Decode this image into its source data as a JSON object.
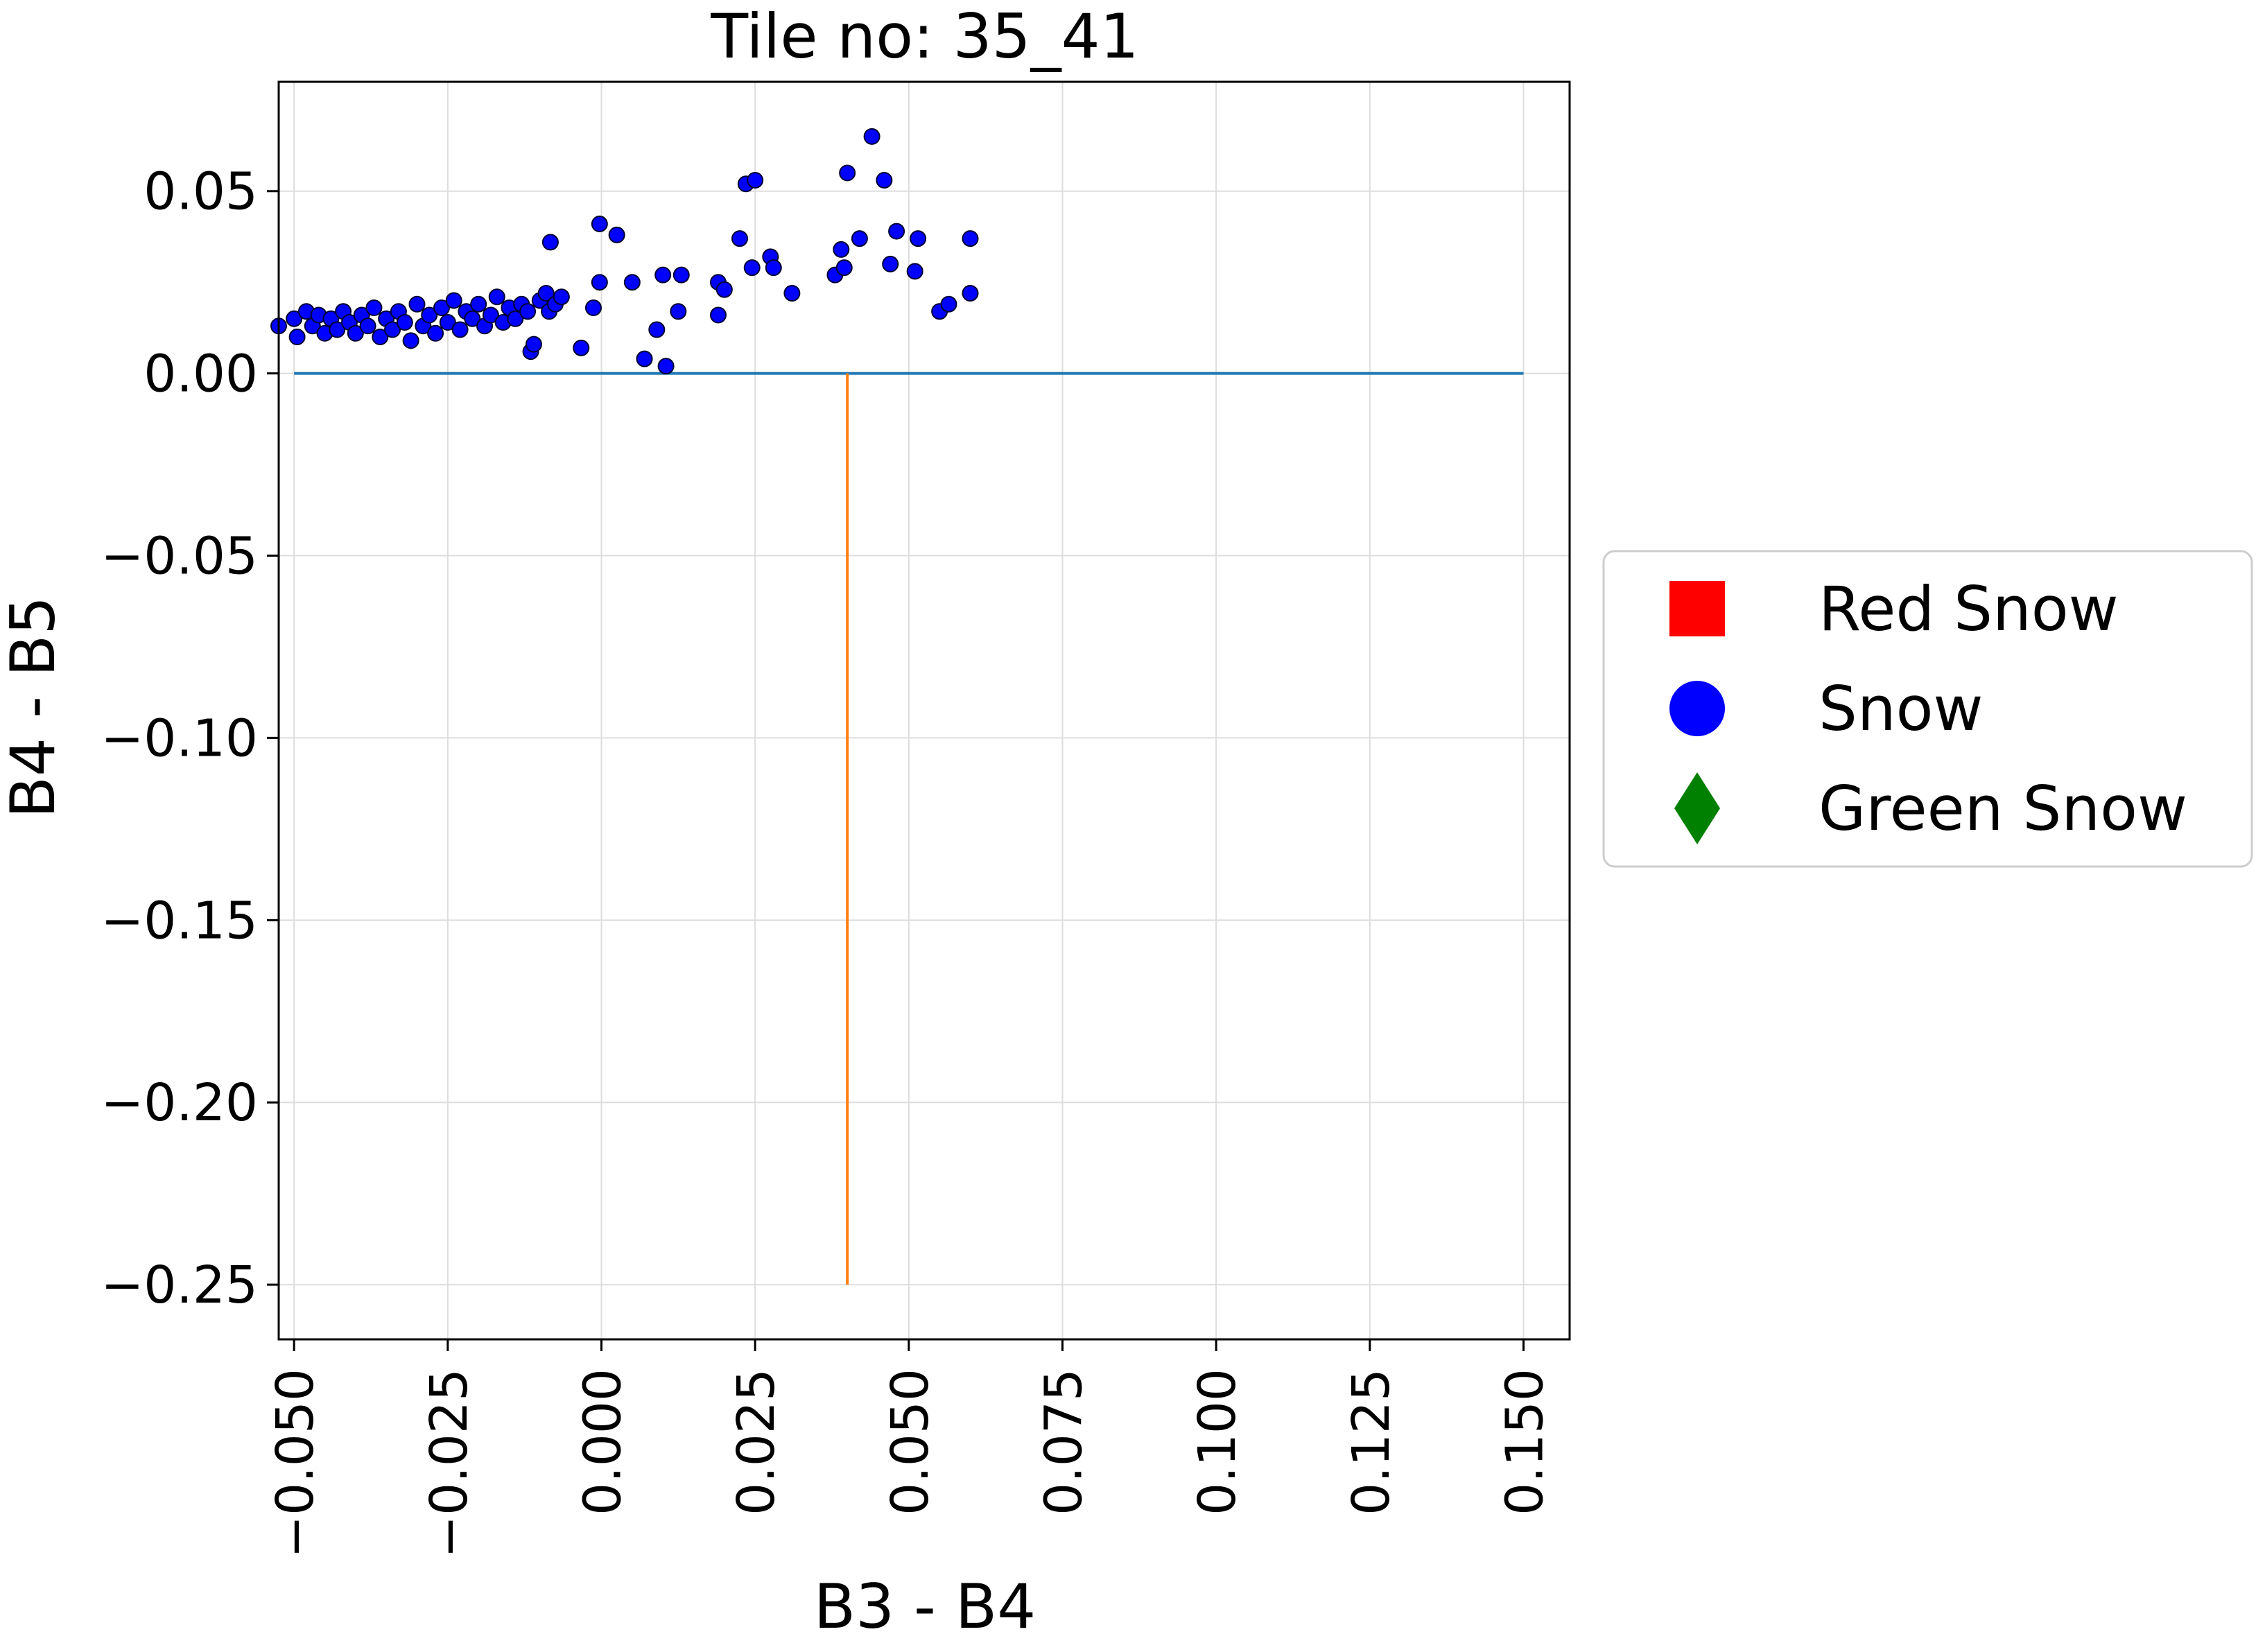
{
  "chart_data": {
    "type": "scatter",
    "title": "Tile no: 35_41",
    "xlabel": "B3 - B4",
    "ylabel": "B4 - B5",
    "xlim": [
      -0.0525,
      0.1575
    ],
    "ylim": [
      -0.265,
      0.08
    ],
    "grid": true,
    "legend_position": "outside-right",
    "x_tick_labels": [
      "−0.050",
      "−0.025",
      "0.000",
      "0.025",
      "0.050",
      "0.075",
      "0.100",
      "0.125",
      "0.150"
    ],
    "x_tick_values": [
      -0.05,
      -0.025,
      0.0,
      0.025,
      0.05,
      0.075,
      0.1,
      0.125,
      0.15
    ],
    "y_tick_labels": [
      "0.05",
      "0.00",
      "−0.05",
      "−0.10",
      "−0.15",
      "−0.20",
      "−0.25"
    ],
    "y_tick_values": [
      0.05,
      0.0,
      -0.05,
      -0.1,
      -0.15,
      -0.2,
      -0.25
    ],
    "legend": [
      {
        "label": "Red Snow",
        "marker": "square",
        "color": "#ff0000"
      },
      {
        "label": "Snow",
        "marker": "circle",
        "color": "#0000ff"
      },
      {
        "label": "Green Snow",
        "marker": "diamond",
        "color": "#008000"
      }
    ],
    "reference_lines": [
      {
        "orientation": "horizontal",
        "y": 0.0,
        "x_from": -0.05,
        "x_to": 0.15,
        "color": "#1f77b4"
      },
      {
        "orientation": "vertical",
        "x": 0.04,
        "y_from": -0.25,
        "y_to": 0.0,
        "color": "#ff7f0e"
      }
    ],
    "series": [
      {
        "name": "Snow",
        "marker": "circle",
        "color": "#0000ff",
        "points": [
          [
            -0.0525,
            0.013
          ],
          [
            -0.05,
            0.015
          ],
          [
            -0.0495,
            0.01
          ],
          [
            -0.048,
            0.017
          ],
          [
            -0.047,
            0.013
          ],
          [
            -0.046,
            0.016
          ],
          [
            -0.045,
            0.011
          ],
          [
            -0.044,
            0.015
          ],
          [
            -0.043,
            0.012
          ],
          [
            -0.042,
            0.017
          ],
          [
            -0.041,
            0.014
          ],
          [
            -0.04,
            0.011
          ],
          [
            -0.039,
            0.016
          ],
          [
            -0.038,
            0.013
          ],
          [
            -0.037,
            0.018
          ],
          [
            -0.036,
            0.01
          ],
          [
            -0.035,
            0.015
          ],
          [
            -0.034,
            0.012
          ],
          [
            -0.033,
            0.017
          ],
          [
            -0.032,
            0.014
          ],
          [
            -0.031,
            0.009
          ],
          [
            -0.03,
            0.019
          ],
          [
            -0.029,
            0.013
          ],
          [
            -0.028,
            0.016
          ],
          [
            -0.027,
            0.011
          ],
          [
            -0.026,
            0.018
          ],
          [
            -0.025,
            0.014
          ],
          [
            -0.024,
            0.02
          ],
          [
            -0.023,
            0.012
          ],
          [
            -0.022,
            0.017
          ],
          [
            -0.021,
            0.015
          ],
          [
            -0.02,
            0.019
          ],
          [
            -0.019,
            0.013
          ],
          [
            -0.018,
            0.016
          ],
          [
            -0.017,
            0.021
          ],
          [
            -0.016,
            0.014
          ],
          [
            -0.015,
            0.018
          ],
          [
            -0.014,
            0.015
          ],
          [
            -0.013,
            0.019
          ],
          [
            -0.012,
            0.017
          ],
          [
            -0.0115,
            0.006
          ],
          [
            -0.011,
            0.008
          ],
          [
            -0.01,
            0.02
          ],
          [
            -0.009,
            0.022
          ],
          [
            -0.0085,
            0.017
          ],
          [
            -0.0075,
            0.019
          ],
          [
            -0.0065,
            0.021
          ],
          [
            -0.0083,
            0.036
          ],
          [
            -0.0033,
            0.007
          ],
          [
            -0.0013,
            0.018
          ],
          [
            -0.0003,
            0.025
          ],
          [
            -0.0003,
            0.041
          ],
          [
            0.0025,
            0.038
          ],
          [
            0.005,
            0.025
          ],
          [
            0.007,
            0.004
          ],
          [
            0.009,
            0.012
          ],
          [
            0.01,
            0.027
          ],
          [
            0.0105,
            0.002
          ],
          [
            0.0125,
            0.017
          ],
          [
            0.013,
            0.027
          ],
          [
            0.019,
            0.016
          ],
          [
            0.019,
            0.025
          ],
          [
            0.02,
            0.023
          ],
          [
            0.0225,
            0.037
          ],
          [
            0.0235,
            0.052
          ],
          [
            0.0245,
            0.029
          ],
          [
            0.025,
            0.053
          ],
          [
            0.0275,
            0.032
          ],
          [
            0.028,
            0.029
          ],
          [
            0.031,
            0.022
          ],
          [
            0.038,
            0.027
          ],
          [
            0.039,
            0.034
          ],
          [
            0.0395,
            0.029
          ],
          [
            0.04,
            0.055
          ],
          [
            0.042,
            0.037
          ],
          [
            0.044,
            0.065
          ],
          [
            0.046,
            0.053
          ],
          [
            0.047,
            0.03
          ],
          [
            0.048,
            0.039
          ],
          [
            0.051,
            0.028
          ],
          [
            0.0515,
            0.037
          ],
          [
            0.055,
            0.017
          ],
          [
            0.0565,
            0.019
          ],
          [
            0.06,
            0.022
          ],
          [
            0.06,
            0.037
          ]
        ]
      },
      {
        "name": "Red Snow",
        "marker": "square",
        "color": "#ff0000",
        "points": []
      },
      {
        "name": "Green Snow",
        "marker": "diamond",
        "color": "#008000",
        "points": []
      }
    ]
  }
}
